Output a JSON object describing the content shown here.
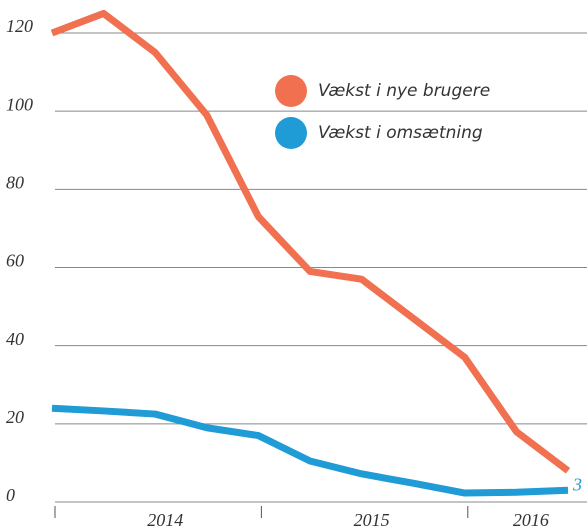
{
  "chart_data": {
    "type": "line",
    "categories": [
      null,
      null,
      null,
      null,
      null,
      null,
      null,
      null,
      null,
      null,
      null
    ],
    "x_labels": [
      "2014",
      "2015",
      "2016"
    ],
    "series": [
      {
        "name": "Vækst i nye brugere",
        "color": "#f07050",
        "values": [
          120,
          125,
          115,
          99,
          73,
          59,
          57,
          47,
          37,
          18,
          8
        ]
      },
      {
        "name": "Vækst i omsætning",
        "color": "#1f9bd6",
        "values": [
          24,
          23.3,
          22.5,
          19,
          17,
          10.5,
          7.2,
          4.8,
          2.3,
          2.5,
          3
        ],
        "value_labels": [
          null,
          null,
          null,
          null,
          null,
          null,
          null,
          null,
          null,
          null,
          "3"
        ]
      }
    ],
    "ylim": [
      0,
      120
    ],
    "yticks": [
      0,
      20,
      40,
      60,
      80,
      100,
      120
    ],
    "grid": true
  }
}
